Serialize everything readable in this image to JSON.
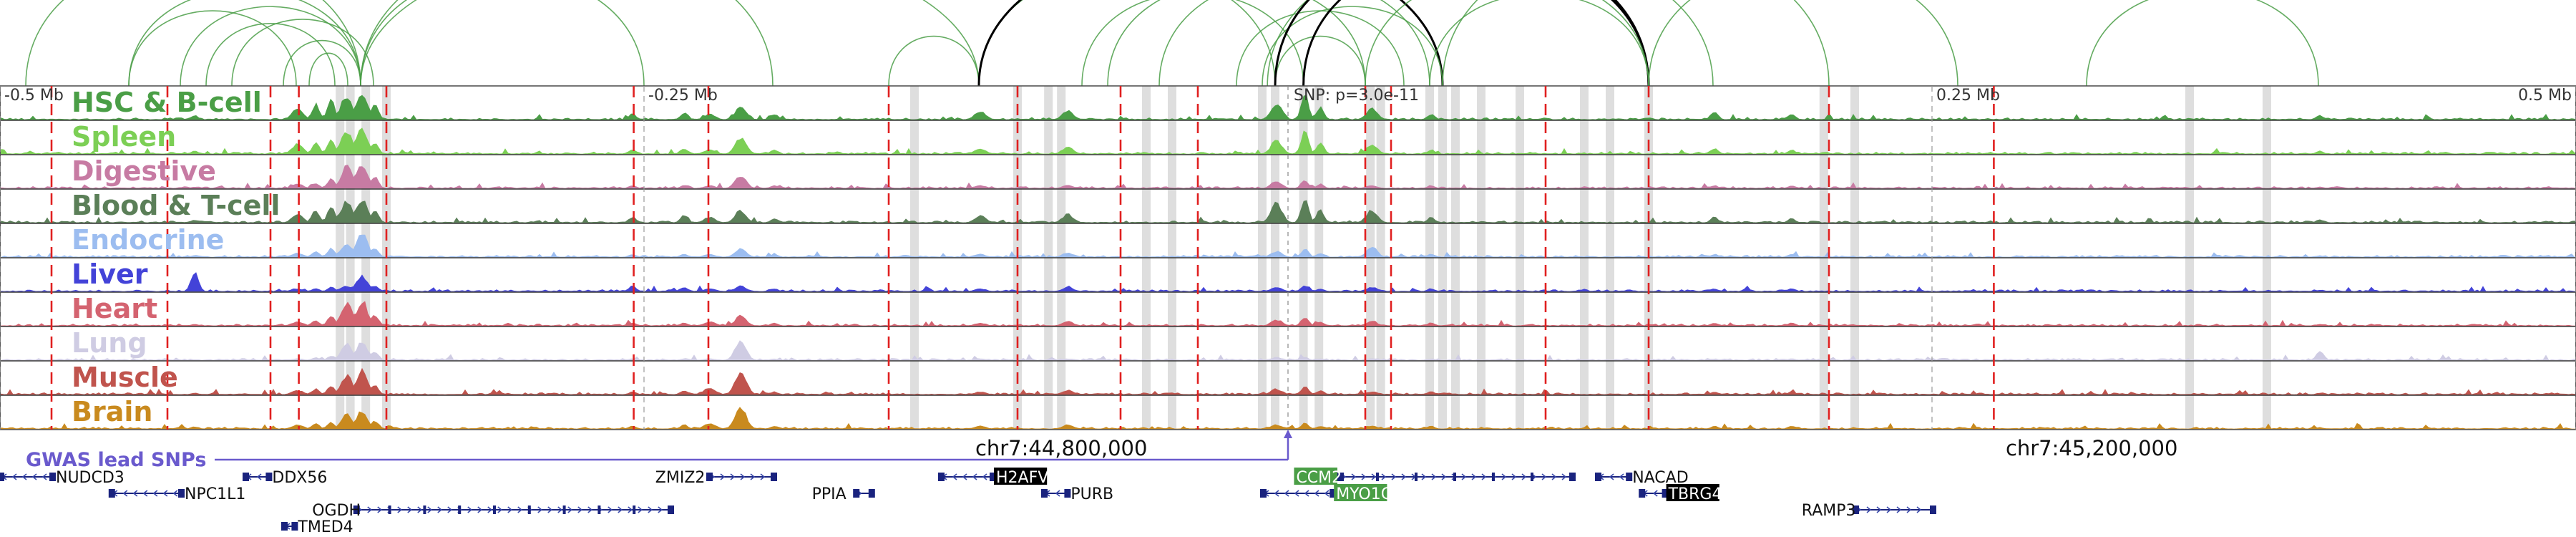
{
  "chart_data": {
    "type": "area",
    "title": "",
    "region": {
      "start_mb": -0.5,
      "end_mb": 0.5,
      "ruler_ticks": [
        {
          "pos": -0.5,
          "label": "-0.5 Mb"
        },
        {
          "pos": -0.25,
          "label": "-0.25 Mb"
        },
        {
          "pos": 0.25,
          "label": "0.25 Mb"
        },
        {
          "pos": 0.5,
          "label": "0.5 Mb"
        }
      ],
      "coordinates": [
        {
          "pos": -0.088,
          "label": "chr7:44,800,000"
        },
        {
          "pos": 0.312,
          "label": "chr7:45,200,000"
        }
      ]
    },
    "snp": {
      "pos": 0.0,
      "label": "SNP: p=3.0e-11",
      "gwas_label": "GWAS lead SNPs",
      "gwas_color": "#6a5acd"
    },
    "tracks": [
      {
        "name": "HSC & B-cell",
        "color": "#4a9e46",
        "label_color": "#4a9e46"
      },
      {
        "name": "Spleen",
        "color": "#7ccf55",
        "label_color": "#7ccf55"
      },
      {
        "name": "Digestive",
        "color": "#c77ba3",
        "label_color": "#c77ba3"
      },
      {
        "name": "Blood & T-cell",
        "color": "#5b7f58",
        "label_color": "#5b7f58"
      },
      {
        "name": "Endocrine",
        "color": "#9cbdf0",
        "label_color": "#9cbdf0"
      },
      {
        "name": "Liver",
        "color": "#4343d8",
        "label_color": "#4343d8"
      },
      {
        "name": "Heart",
        "color": "#d46370",
        "label_color": "#d46370"
      },
      {
        "name": "Lung",
        "color": "#cfcce3",
        "label_color": "#cfcce3"
      },
      {
        "name": "Muscle",
        "color": "#c0544d",
        "label_color": "#c0544d"
      },
      {
        "name": "Brain",
        "color": "#c98a1e",
        "label_color": "#c98a1e"
      }
    ],
    "peaks": [
      {
        "pos": -0.425,
        "w": 0.002,
        "h": [
          0.15,
          0.1,
          0.05,
          0.1,
          0.05,
          0.7,
          0.05,
          0.02,
          0.05,
          0.08
        ]
      },
      {
        "pos": -0.385,
        "w": 0.003,
        "h": [
          0.4,
          0.35,
          0.15,
          0.3,
          0.15,
          0.1,
          0.15,
          0.05,
          0.15,
          0.15
        ]
      },
      {
        "pos": -0.378,
        "w": 0.002,
        "h": [
          0.55,
          0.4,
          0.2,
          0.45,
          0.2,
          0.1,
          0.2,
          0.1,
          0.2,
          0.2
        ]
      },
      {
        "pos": -0.372,
        "w": 0.002,
        "h": [
          0.7,
          0.5,
          0.35,
          0.55,
          0.3,
          0.15,
          0.35,
          0.15,
          0.3,
          0.25
        ]
      },
      {
        "pos": -0.366,
        "w": 0.003,
        "h": [
          0.9,
          0.8,
          0.8,
          0.75,
          0.45,
          0.2,
          0.8,
          0.6,
          0.7,
          0.5
        ]
      },
      {
        "pos": -0.36,
        "w": 0.003,
        "h": [
          0.95,
          0.9,
          0.9,
          0.85,
          0.9,
          0.55,
          0.9,
          0.7,
          0.85,
          0.65
        ]
      },
      {
        "pos": -0.355,
        "w": 0.002,
        "h": [
          0.5,
          0.4,
          0.4,
          0.45,
          0.35,
          0.2,
          0.4,
          0.3,
          0.35,
          0.3
        ]
      },
      {
        "pos": -0.255,
        "w": 0.002,
        "h": [
          0.2,
          0.15,
          0.1,
          0.2,
          0.1,
          0.2,
          0.1,
          0.05,
          0.1,
          0.1
        ]
      },
      {
        "pos": -0.235,
        "w": 0.002,
        "h": [
          0.25,
          0.2,
          0.1,
          0.25,
          0.1,
          0.15,
          0.1,
          0.05,
          0.15,
          0.15
        ]
      },
      {
        "pos": -0.225,
        "w": 0.003,
        "h": [
          0.2,
          0.15,
          0.1,
          0.2,
          0.1,
          0.1,
          0.15,
          0.05,
          0.25,
          0.2
        ]
      },
      {
        "pos": -0.213,
        "w": 0.003,
        "h": [
          0.45,
          0.6,
          0.45,
          0.45,
          0.3,
          0.2,
          0.35,
          0.7,
          0.85,
          0.8
        ]
      },
      {
        "pos": -0.2,
        "w": 0.002,
        "h": [
          0.2,
          0.15,
          0.1,
          0.15,
          0.1,
          0.1,
          0.1,
          0.05,
          0.1,
          0.1
        ]
      },
      {
        "pos": -0.12,
        "w": 0.003,
        "h": [
          0.3,
          0.2,
          0.1,
          0.25,
          0.1,
          0.1,
          0.1,
          0.05,
          0.1,
          0.1
        ]
      },
      {
        "pos": -0.086,
        "w": 0.003,
        "h": [
          0.3,
          0.25,
          0.1,
          0.3,
          0.15,
          0.15,
          0.15,
          0.05,
          0.15,
          0.15
        ]
      },
      {
        "pos": -0.005,
        "w": 0.003,
        "h": [
          0.6,
          0.5,
          0.25,
          0.7,
          0.2,
          0.15,
          0.2,
          0.1,
          0.2,
          0.15
        ]
      },
      {
        "pos": 0.006,
        "w": 0.002,
        "h": [
          0.95,
          0.8,
          0.3,
          0.9,
          0.3,
          0.2,
          0.3,
          0.1,
          0.3,
          0.2
        ]
      },
      {
        "pos": 0.012,
        "w": 0.002,
        "h": [
          0.45,
          0.4,
          0.15,
          0.45,
          0.15,
          0.1,
          0.15,
          0.05,
          0.15,
          0.1
        ]
      },
      {
        "pos": 0.032,
        "w": 0.003,
        "h": [
          0.4,
          0.35,
          0.1,
          0.45,
          0.35,
          0.15,
          0.15,
          0.05,
          0.1,
          0.1
        ]
      },
      {
        "pos": 0.055,
        "w": 0.002,
        "h": [
          0.2,
          0.15,
          0.1,
          0.2,
          0.1,
          0.1,
          0.1,
          0.05,
          0.1,
          0.1
        ]
      },
      {
        "pos": 0.165,
        "w": 0.002,
        "h": [
          0.3,
          0.2,
          0.1,
          0.2,
          0.1,
          0.1,
          0.1,
          0.05,
          0.1,
          0.1
        ]
      },
      {
        "pos": 0.195,
        "w": 0.002,
        "h": [
          0.2,
          0.15,
          0.1,
          0.15,
          0.1,
          0.1,
          0.1,
          0.05,
          0.1,
          0.1
        ]
      },
      {
        "pos": 0.4,
        "w": 0.002,
        "h": [
          0.15,
          0.1,
          0.05,
          0.1,
          0.05,
          0.05,
          0.05,
          0.35,
          0.05,
          0.05
        ]
      }
    ],
    "loops": [
      {
        "from": -0.49,
        "to": -0.36,
        "color": "green"
      },
      {
        "from": -0.45,
        "to": -0.36,
        "color": "green"
      },
      {
        "from": -0.43,
        "to": -0.36,
        "color": "green"
      },
      {
        "from": -0.41,
        "to": -0.355,
        "color": "green"
      },
      {
        "from": -0.39,
        "to": -0.36,
        "color": "green"
      },
      {
        "from": -0.38,
        "to": -0.365,
        "color": "green"
      },
      {
        "from": -0.45,
        "to": -0.385,
        "color": "green"
      },
      {
        "from": -0.42,
        "to": -0.37,
        "color": "green"
      },
      {
        "from": -0.36,
        "to": -0.2,
        "color": "green"
      },
      {
        "from": -0.36,
        "to": -0.25,
        "color": "green"
      },
      {
        "from": -0.36,
        "to": -0.12,
        "color": "green"
      },
      {
        "from": -0.155,
        "to": -0.12,
        "color": "green"
      },
      {
        "from": -0.12,
        "to": -0.005,
        "color": "green"
      },
      {
        "from": -0.12,
        "to": 0.06,
        "color": "black"
      },
      {
        "from": -0.02,
        "to": 0.045,
        "color": "green"
      },
      {
        "from": -0.08,
        "to": 0.006,
        "color": "green"
      },
      {
        "from": -0.07,
        "to": 0.03,
        "color": "green"
      },
      {
        "from": -0.05,
        "to": 0.055,
        "color": "green"
      },
      {
        "from": -0.005,
        "to": 0.03,
        "color": "green"
      },
      {
        "from": -0.01,
        "to": 0.06,
        "color": "green"
      },
      {
        "from": -0.005,
        "to": 0.14,
        "color": "green"
      },
      {
        "from": -0.008,
        "to": 0.165,
        "color": "green"
      },
      {
        "from": -0.005,
        "to": 0.14,
        "color": "black"
      },
      {
        "from": 0.006,
        "to": 0.14,
        "color": "black"
      },
      {
        "from": 0.03,
        "to": 0.14,
        "color": "green"
      },
      {
        "from": 0.055,
        "to": 0.14,
        "color": "green"
      },
      {
        "from": 0.06,
        "to": 0.21,
        "color": "green"
      },
      {
        "from": 0.14,
        "to": 0.26,
        "color": "green"
      },
      {
        "from": 0.31,
        "to": 0.4,
        "color": "green"
      }
    ],
    "red_lines": [
      -0.48,
      -0.435,
      -0.395,
      -0.384,
      -0.35,
      -0.254,
      -0.225,
      -0.155,
      -0.105,
      -0.065,
      -0.035,
      0.03,
      0.04,
      0.1,
      0.14,
      0.21,
      0.274
    ],
    "gray_bars": [
      -0.368,
      -0.364,
      -0.358,
      -0.35,
      -0.145,
      -0.105,
      -0.093,
      -0.088,
      -0.055,
      -0.045,
      -0.01,
      -0.005,
      0.006,
      0.012,
      0.032,
      0.036,
      0.055,
      0.06,
      0.065,
      0.075,
      0.09,
      0.115,
      0.125,
      0.14,
      0.208,
      0.22,
      0.35,
      0.38
    ],
    "genes": [
      {
        "name": "NUDCD3",
        "start": -0.5,
        "end": -0.48,
        "strand": "-",
        "row": 0,
        "label_side": "right"
      },
      {
        "name": "DDX56",
        "start": -0.405,
        "end": -0.396,
        "strand": "-",
        "row": 0,
        "label_side": "right"
      },
      {
        "name": "NPC1L1",
        "start": -0.457,
        "end": -0.43,
        "strand": "-",
        "row": 1,
        "label_side": "right"
      },
      {
        "name": "OGDH",
        "start": -0.362,
        "end": -0.24,
        "strand": "+",
        "row": 2,
        "label_side": "left"
      },
      {
        "name": "TMED4",
        "start": -0.39,
        "end": -0.386,
        "strand": "-",
        "row": 3,
        "label_side": "right"
      },
      {
        "name": "ZMIZ2",
        "start": -0.225,
        "end": -0.2,
        "strand": "+",
        "row": 0,
        "label_side": "left"
      },
      {
        "name": "PPIA",
        "start": -0.168,
        "end": -0.162,
        "strand": "+",
        "row": 1,
        "label_side": "left"
      },
      {
        "name": "H2AFV",
        "start": -0.135,
        "end": -0.115,
        "strand": "-",
        "row": 0,
        "label_side": "right",
        "box": "#000000"
      },
      {
        "name": "PURB",
        "start": -0.095,
        "end": -0.086,
        "strand": "-",
        "row": 1,
        "label_side": "right"
      },
      {
        "name": "CCM2",
        "start": 0.02,
        "end": 0.11,
        "strand": "+",
        "row": 0,
        "label_side": "left",
        "box": "#4a9e46"
      },
      {
        "name": "MYO1G",
        "start": -0.01,
        "end": 0.017,
        "strand": "-",
        "row": 1,
        "label_side": "right",
        "box": "#4a9e46"
      },
      {
        "name": "NACAD",
        "start": 0.12,
        "end": 0.132,
        "strand": "-",
        "row": 0,
        "label_side": "right"
      },
      {
        "name": "TBRG4",
        "start": 0.137,
        "end": 0.146,
        "strand": "-",
        "row": 1,
        "label_side": "right",
        "box": "#000000"
      },
      {
        "name": "RAMP3",
        "start": 0.22,
        "end": 0.25,
        "strand": "+",
        "row": 2,
        "label_side": "left"
      }
    ]
  }
}
